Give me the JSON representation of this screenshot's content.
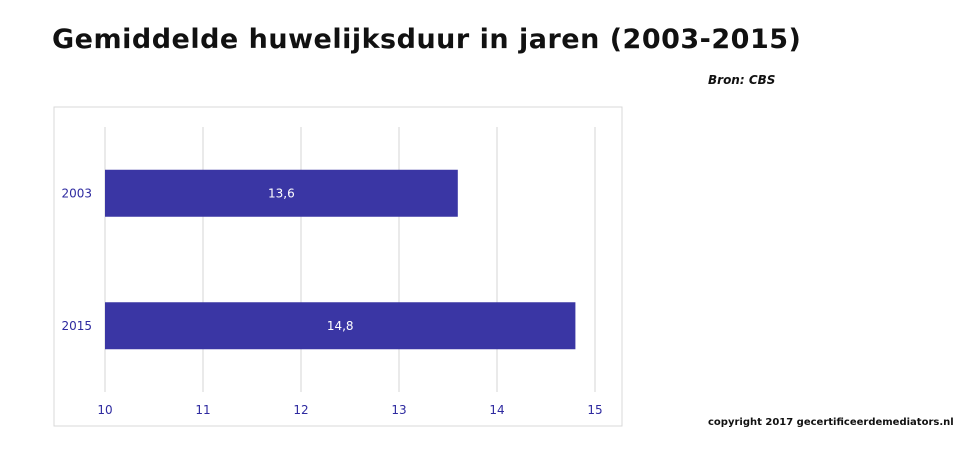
{
  "header": {
    "title": "Gemiddelde huwelijksduur in jaren (2003-2015)",
    "source": "Bron: CBS"
  },
  "footer": {
    "copyright": "copyright 2017 gecertificeerdemediators.nl"
  },
  "colors": {
    "bar": "#3a36a4",
    "axis_text": "#2e2aa0",
    "gridline": "#d4d4d4",
    "frame": "#d9d9d9"
  },
  "chart_data": {
    "type": "bar",
    "orientation": "horizontal",
    "title": "Gemiddelde huwelijksduur in jaren (2003-2015)",
    "categories": [
      "2003",
      "2015"
    ],
    "values": [
      13.6,
      14.8
    ],
    "data_labels": [
      "13,6",
      "14,8"
    ],
    "xlim": [
      10,
      15
    ],
    "x_ticks": [
      "10",
      "11",
      "12",
      "13",
      "14",
      "15"
    ],
    "grid": true,
    "legend": "none",
    "xlabel": "",
    "ylabel": ""
  }
}
